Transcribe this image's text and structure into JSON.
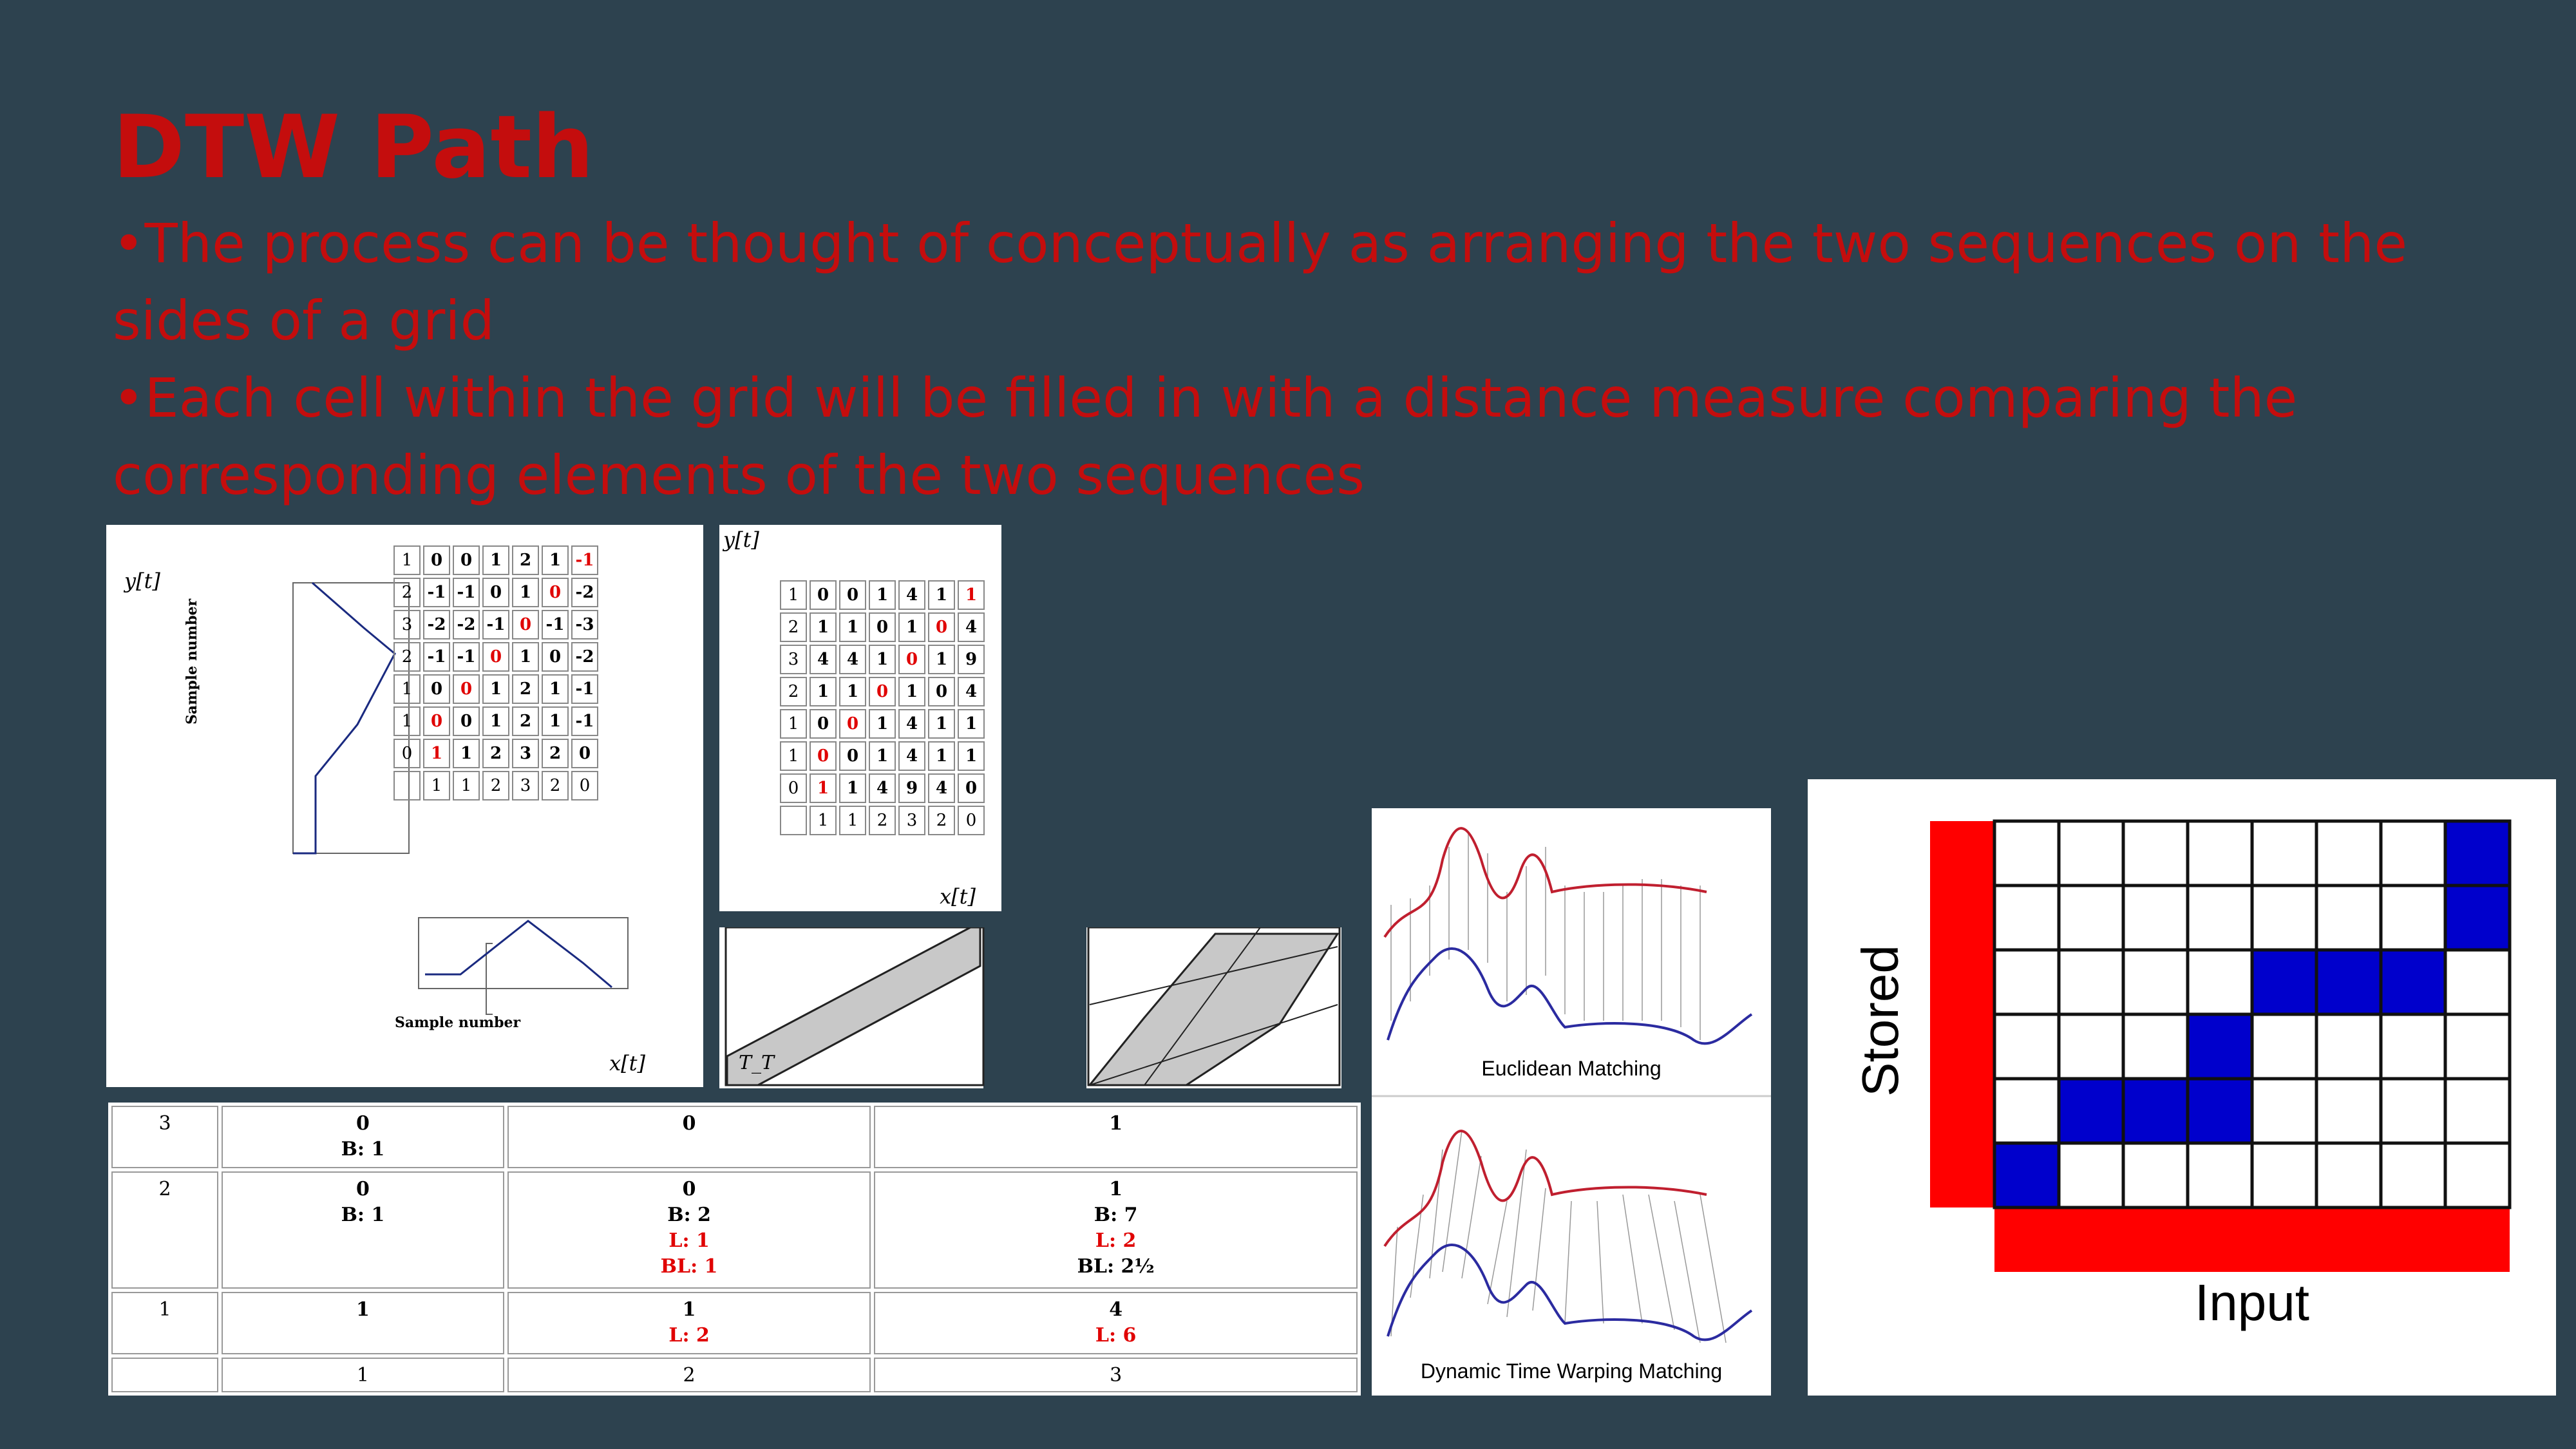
{
  "slide": {
    "title": "DTW Path",
    "bullets": [
      "•The process can be thought of conceptually as arranging the two sequences on the sides of a grid",
      "•Each cell within the grid will be filled in with a distance measure comparing the corresponding elements of the two sequences"
    ]
  },
  "fig1": {
    "y_label": "y[t]",
    "x_label": "x[t]",
    "y_axis_title": "Sample number",
    "x_axis_title": "Sample number",
    "grid": [
      [
        "1",
        "0",
        "0",
        "1",
        "2",
        "1",
        "-1"
      ],
      [
        "2",
        "-1",
        "-1",
        "0",
        "1",
        "0",
        "-2"
      ],
      [
        "3",
        "-2",
        "-2",
        "-1",
        "0",
        "-1",
        "-3"
      ],
      [
        "2",
        "-1",
        "-1",
        "0",
        "1",
        "0",
        "-2"
      ],
      [
        "1",
        "0",
        "0",
        "1",
        "2",
        "1",
        "-1"
      ],
      [
        "1",
        "0",
        "0",
        "1",
        "2",
        "1",
        "-1"
      ],
      [
        "0",
        "1",
        "1",
        "2",
        "3",
        "2",
        "0"
      ],
      [
        "",
        "1",
        "1",
        "2",
        "3",
        "2",
        "0"
      ]
    ]
  },
  "fig2": {
    "y_label": "y[t]",
    "x_label": "x[t]",
    "grid": [
      [
        "1",
        "0",
        "0",
        "1",
        "4",
        "1",
        "1"
      ],
      [
        "2",
        "1",
        "1",
        "0",
        "1",
        "0",
        "4"
      ],
      [
        "3",
        "4",
        "4",
        "1",
        "0",
        "1",
        "9"
      ],
      [
        "2",
        "1",
        "1",
        "0",
        "1",
        "0",
        "4"
      ],
      [
        "1",
        "0",
        "0",
        "1",
        "4",
        "1",
        "1"
      ],
      [
        "1",
        "0",
        "0",
        "1",
        "4",
        "1",
        "1"
      ],
      [
        "0",
        "1",
        "1",
        "4",
        "9",
        "4",
        "0"
      ],
      [
        "",
        "1",
        "1",
        "2",
        "3",
        "2",
        "0"
      ]
    ]
  },
  "fig3": {
    "label": "T_T"
  },
  "dtw_table": {
    "rows": [
      {
        "head": "3",
        "cells": [
          [
            "0",
            "B: 1"
          ],
          [
            "0"
          ],
          [
            "1"
          ]
        ]
      },
      {
        "head": "2",
        "cells": [
          [
            "0",
            "B: 1"
          ],
          [
            "0",
            "B: 2",
            "L: 1",
            "BL: 1"
          ],
          [
            "1",
            "B: 7",
            "L: 2",
            "BL: 2½"
          ]
        ]
      },
      {
        "head": "1",
        "cells": [
          [
            "1"
          ],
          [
            "1",
            "L: 2"
          ],
          [
            "4",
            "L: 6"
          ]
        ]
      },
      {
        "head": "",
        "cells": [
          [
            "1"
          ],
          [
            "2"
          ],
          [
            "3"
          ]
        ]
      }
    ]
  },
  "matching": {
    "euclidean_caption": "Euclidean Matching",
    "dtw_caption": "Dynamic Time Warping Matching"
  },
  "grid_fig": {
    "y_label": "Stored",
    "x_label": "Input",
    "colors": {
      "red": "#ff0000",
      "blue": "#0000cc"
    }
  }
}
